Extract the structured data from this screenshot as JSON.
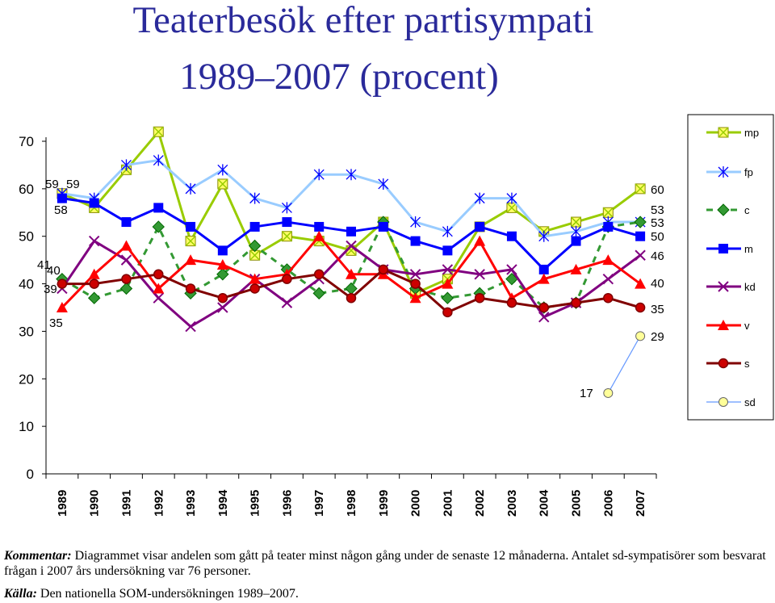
{
  "title": {
    "line1": "Teaterbesök efter partisympati",
    "line2": "1989–2007 (procent)"
  },
  "comment": {
    "label": "Kommentar:",
    "text": "Diagrammet visar andelen som gått på teater minst någon gång under de senaste 12 månaderna. Antalet sd-sympatisörer som besvarat frågan i 2007 års undersökning var 76 personer."
  },
  "source": {
    "label": "Källa:",
    "text": "Den nationella SOM-undersökningen 1989–2007."
  },
  "chart_data": {
    "type": "line",
    "categories": [
      "1989",
      "1990",
      "1991",
      "1992",
      "1993",
      "1994",
      "1995",
      "1996",
      "1997",
      "1998",
      "1999",
      "2000",
      "2001",
      "2002",
      "2003",
      "2004",
      "2005",
      "2006",
      "2007"
    ],
    "ylim": [
      0,
      70
    ],
    "yticks": [
      0,
      10,
      20,
      30,
      40,
      50,
      60,
      70
    ],
    "grid": false,
    "legend_position": "right",
    "series": [
      {
        "name": "mp",
        "color": "#99cc00",
        "marker": "xbox",
        "style": "solid",
        "values": [
          59,
          56,
          64,
          72,
          49,
          61,
          46,
          50,
          49,
          47,
          53,
          38,
          41,
          52,
          56,
          51,
          53,
          55,
          60
        ]
      },
      {
        "name": "fp",
        "color": "#99ccff",
        "marker": "star",
        "style": "solid",
        "values": [
          59,
          58,
          65,
          66,
          60,
          64,
          58,
          56,
          63,
          63,
          61,
          53,
          51,
          58,
          58,
          50,
          51,
          53,
          53
        ]
      },
      {
        "name": "c",
        "color": "#339933",
        "marker": "diamond",
        "style": "dashed",
        "values": [
          41,
          37,
          39,
          52,
          38,
          42,
          48,
          43,
          38,
          39,
          53,
          39,
          37,
          38,
          41,
          35,
          36,
          52,
          53
        ]
      },
      {
        "name": "m",
        "color": "#0000ff",
        "marker": "square",
        "style": "solid",
        "values": [
          58,
          57,
          53,
          56,
          52,
          47,
          52,
          53,
          52,
          51,
          52,
          49,
          47,
          52,
          50,
          43,
          49,
          52,
          50
        ]
      },
      {
        "name": "kd",
        "color": "#800080",
        "marker": "x",
        "style": "solid",
        "values": [
          39,
          49,
          45,
          37,
          31,
          35,
          41,
          36,
          41,
          48,
          43,
          42,
          43,
          42,
          43,
          33,
          36,
          41,
          46
        ]
      },
      {
        "name": "v",
        "color": "#ff0000",
        "marker": "triangle",
        "style": "solid",
        "values": [
          35,
          42,
          48,
          39,
          45,
          44,
          41,
          42,
          50,
          42,
          42,
          37,
          40,
          49,
          37,
          41,
          43,
          45,
          40
        ]
      },
      {
        "name": "s",
        "color": "#800000",
        "marker": "circle",
        "style": "solid",
        "values": [
          40,
          40,
          41,
          42,
          39,
          37,
          39,
          41,
          42,
          37,
          43,
          40,
          34,
          37,
          36,
          35,
          36,
          37,
          35
        ]
      },
      {
        "name": "sd",
        "color": "#6699ff",
        "marker": "circle-yellow",
        "style": "thin",
        "values": [
          null,
          null,
          null,
          null,
          null,
          null,
          null,
          null,
          null,
          null,
          null,
          null,
          null,
          null,
          null,
          null,
          null,
          17,
          29
        ]
      }
    ],
    "data_labels": {
      "1989": [
        "59",
        "58",
        "41",
        "40",
        "39",
        "35"
      ],
      "1990": [
        "59"
      ],
      "2006": [
        "17"
      ],
      "2007": [
        "60",
        "53",
        "53",
        "50",
        "46",
        "40",
        "35",
        "29"
      ]
    }
  }
}
